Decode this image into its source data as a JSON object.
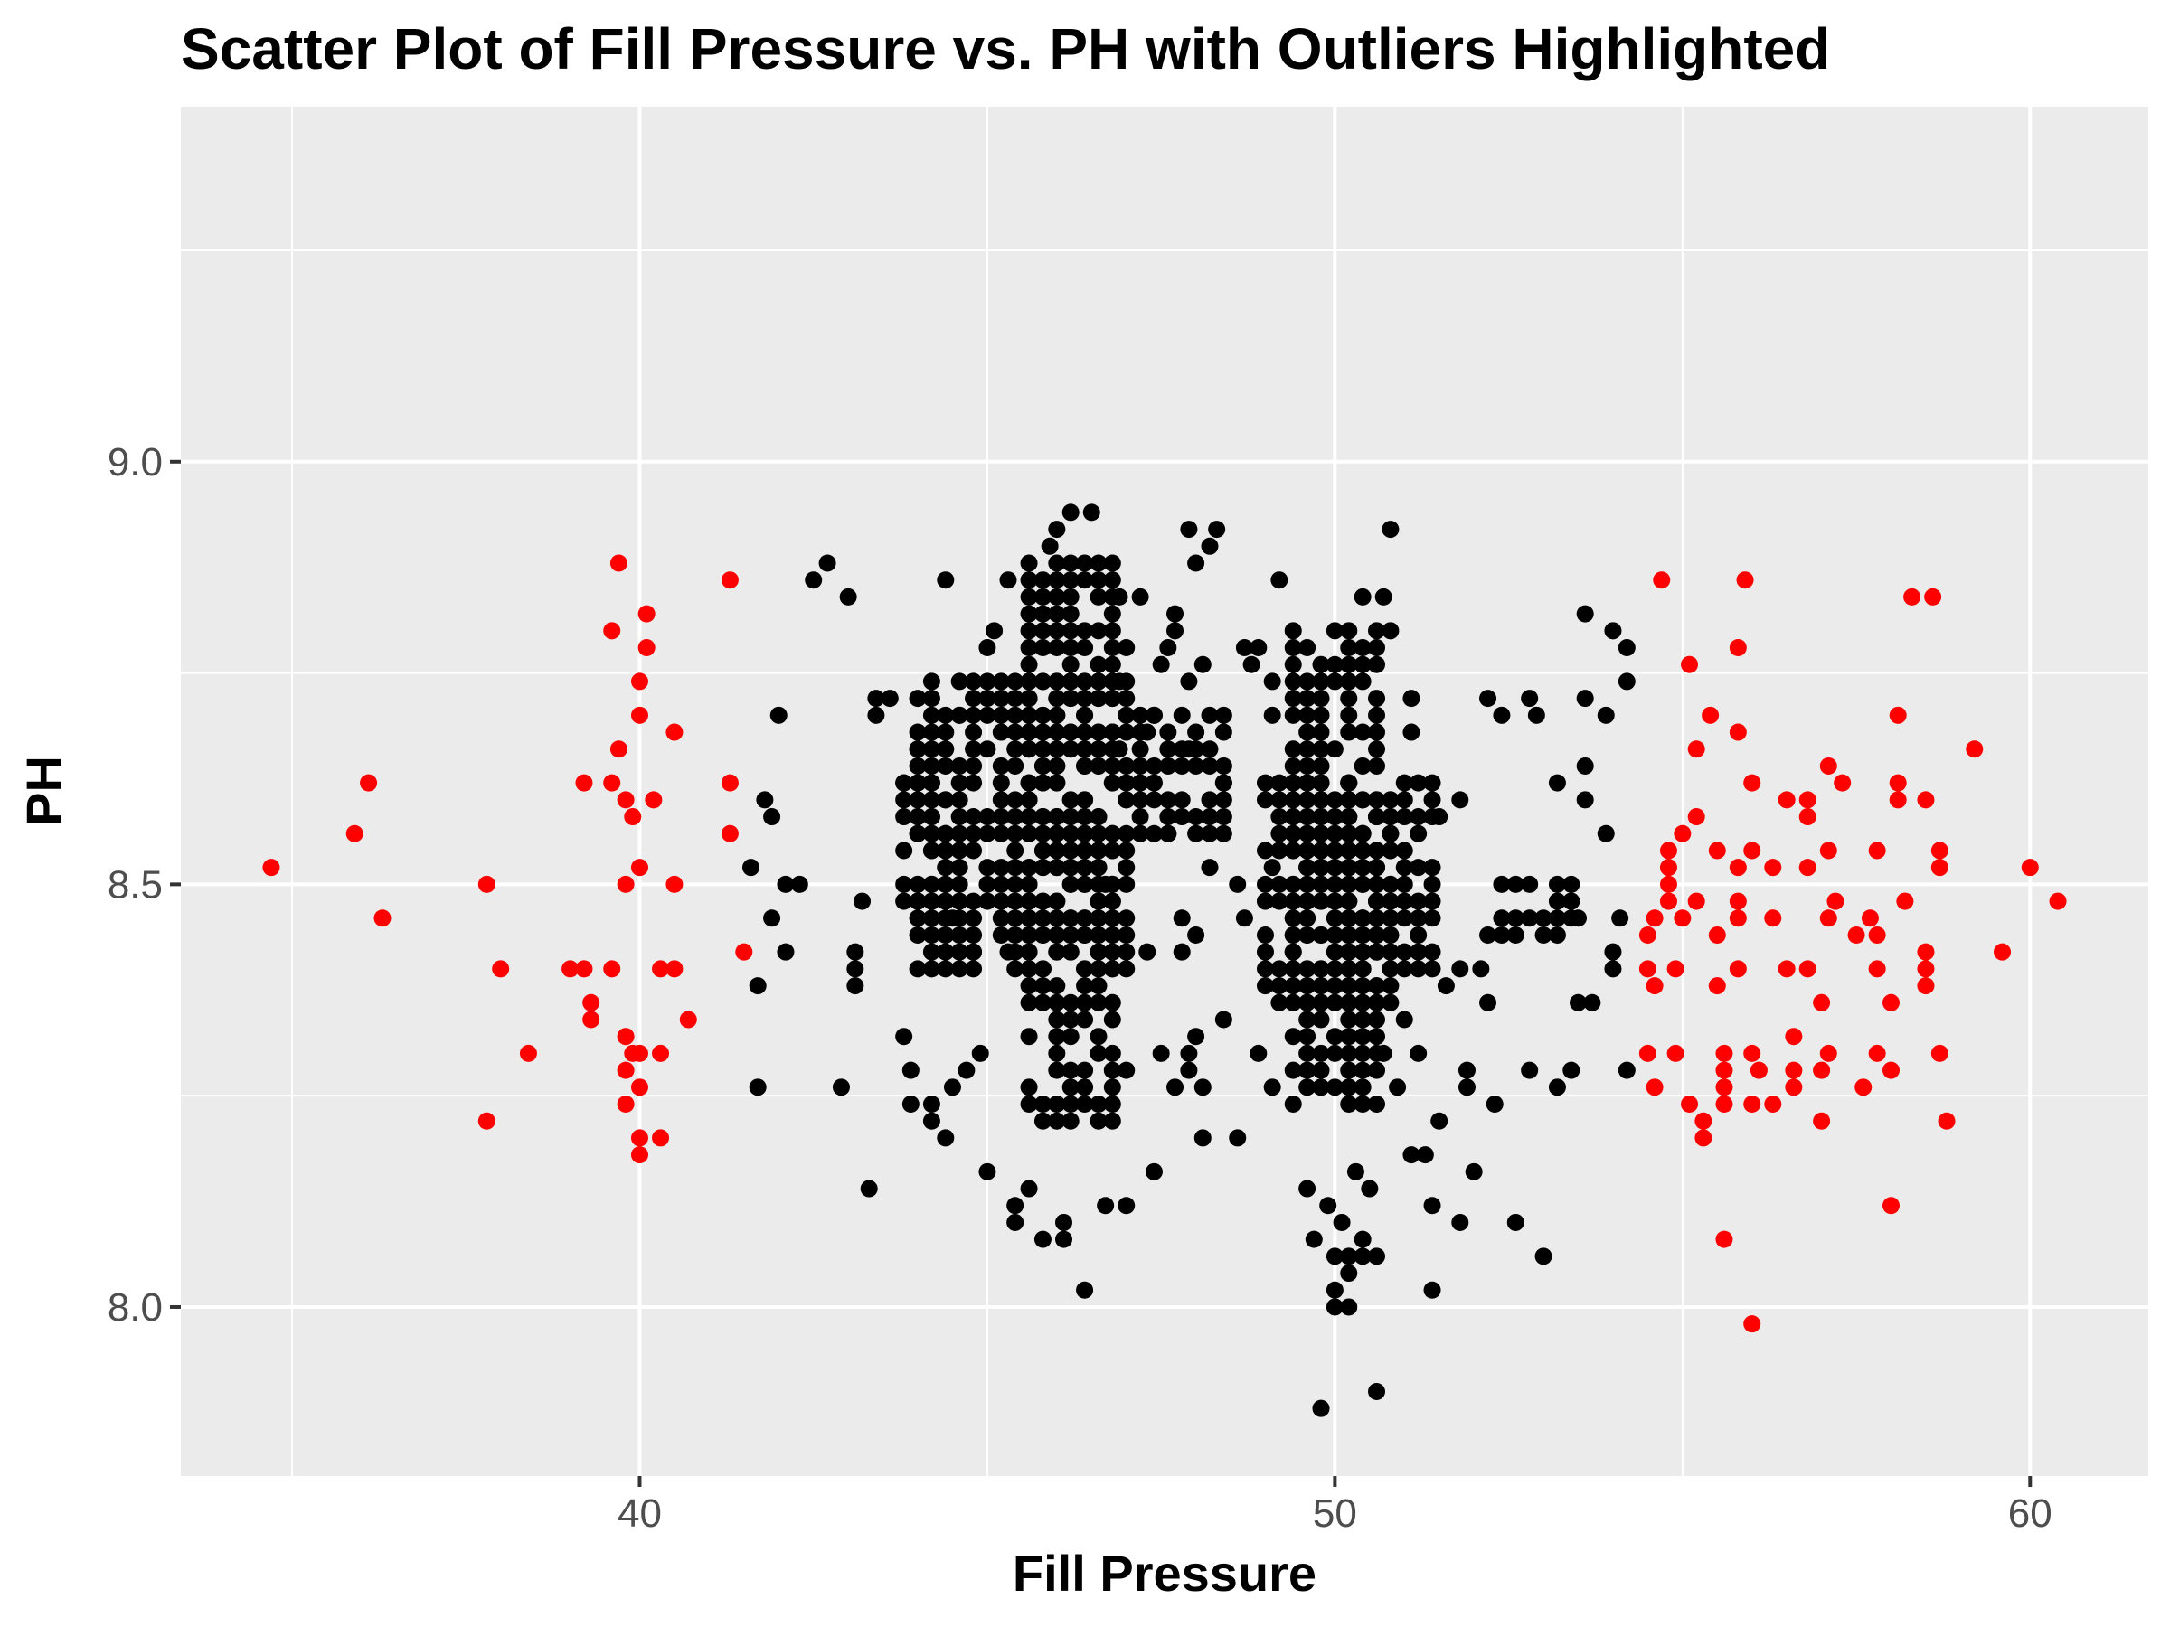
{
  "chart_data": {
    "type": "scatter",
    "title": "Scatter Plot of Fill Pressure vs. PH with Outliers Highlighted",
    "xlabel": "Fill Pressure",
    "ylabel": "PH",
    "xlim": [
      33.4,
      61.7
    ],
    "ylim": [
      7.8,
      9.42
    ],
    "x_ticks": [
      40,
      50,
      60
    ],
    "x_tick_labels": [
      "40",
      "50",
      "60"
    ],
    "y_ticks": [
      8.0,
      8.5,
      9.0
    ],
    "y_tick_labels": [
      "8.0",
      "8.5",
      "9.0"
    ],
    "grid": true,
    "legend": "none",
    "colors": {
      "panel_background": "#ebebeb",
      "grid": "#ffffff",
      "normal": "#000000",
      "outlier": "#ff0000"
    },
    "series": [
      {
        "color": "#000000",
        "points": [
          [
            42.7,
            8.88
          ],
          [
            42.5,
            8.86
          ],
          [
            43.0,
            8.84
          ],
          [
            44.4,
            8.86
          ],
          [
            43.4,
            8.72
          ],
          [
            43.6,
            8.72
          ],
          [
            43.4,
            8.7
          ],
          [
            42.0,
            8.7
          ],
          [
            41.8,
            8.6
          ],
          [
            41.9,
            8.58
          ],
          [
            42.1,
            8.5
          ],
          [
            42.3,
            8.5
          ],
          [
            41.6,
            8.52
          ],
          [
            41.9,
            8.46
          ],
          [
            42.1,
            8.42
          ],
          [
            41.7,
            8.38
          ],
          [
            41.7,
            8.26
          ],
          [
            42.9,
            8.26
          ],
          [
            43.2,
            8.48
          ],
          [
            43.1,
            8.42
          ],
          [
            43.1,
            8.4
          ],
          [
            43.1,
            8.38
          ],
          [
            43.3,
            8.14
          ],
          [
            43.8,
            8.32
          ],
          [
            43.9,
            8.28
          ],
          [
            43.9,
            8.24
          ],
          [
            44.2,
            8.24
          ],
          [
            44.2,
            8.22
          ],
          [
            44.4,
            8.2
          ],
          [
            44.5,
            8.26
          ],
          [
            44.7,
            8.28
          ],
          [
            44.9,
            8.3
          ],
          [
            45.0,
            8.16
          ],
          [
            45.4,
            8.12
          ],
          [
            45.4,
            8.1
          ],
          [
            45.6,
            8.14
          ],
          [
            45.8,
            8.08
          ],
          [
            46.1,
            8.1
          ],
          [
            46.1,
            8.08
          ],
          [
            46.4,
            8.02
          ],
          [
            46.7,
            8.12
          ],
          [
            47.0,
            8.12
          ],
          [
            47.4,
            8.16
          ],
          [
            48.1,
            8.2
          ],
          [
            48.6,
            8.2
          ],
          [
            48.9,
            8.3
          ],
          [
            49.1,
            8.26
          ],
          [
            48.4,
            8.34
          ],
          [
            49.2,
            8.86
          ],
          [
            48.9,
            8.78
          ],
          [
            48.7,
            8.78
          ],
          [
            48.8,
            8.76
          ],
          [
            48.3,
            8.92
          ],
          [
            47.9,
            8.92
          ],
          [
            48.2,
            8.9
          ],
          [
            48.0,
            8.88
          ],
          [
            46.2,
            8.94
          ],
          [
            46.5,
            8.94
          ],
          [
            46.0,
            8.92
          ],
          [
            45.9,
            8.9
          ],
          [
            47.2,
            8.84
          ],
          [
            47.7,
            8.82
          ],
          [
            49.1,
            8.74
          ],
          [
            49.1,
            8.7
          ],
          [
            49.4,
            8.58
          ],
          [
            49.1,
            8.52
          ],
          [
            48.6,
            8.5
          ],
          [
            48.7,
            8.46
          ],
          [
            48.4,
            8.62
          ],
          [
            47.6,
            8.56
          ],
          [
            48.2,
            8.52
          ],
          [
            47.8,
            8.46
          ],
          [
            47.3,
            8.42
          ],
          [
            47.0,
            8.28
          ],
          [
            47.0,
            8.6
          ],
          [
            46.7,
            8.5
          ],
          [
            45.3,
            8.42
          ],
          [
            44.8,
            8.42
          ],
          [
            44.5,
            8.46
          ],
          [
            43.8,
            8.62
          ],
          [
            44.0,
            8.66
          ],
          [
            44.6,
            8.7
          ],
          [
            45.0,
            8.78
          ],
          [
            45.1,
            8.8
          ],
          [
            45.3,
            8.86
          ],
          [
            50.8,
            8.92
          ],
          [
            50.4,
            8.84
          ],
          [
            50.7,
            8.84
          ],
          [
            50.8,
            8.8
          ],
          [
            51.1,
            8.72
          ],
          [
            51.1,
            8.68
          ],
          [
            51.5,
            8.58
          ],
          [
            51.8,
            8.6
          ],
          [
            52.2,
            8.72
          ],
          [
            52.4,
            8.7
          ],
          [
            52.8,
            8.72
          ],
          [
            52.9,
            8.7
          ],
          [
            53.2,
            8.62
          ],
          [
            53.6,
            8.64
          ],
          [
            53.9,
            8.7
          ],
          [
            53.6,
            8.72
          ],
          [
            53.6,
            8.82
          ],
          [
            54.0,
            8.8
          ],
          [
            54.2,
            8.78
          ],
          [
            54.2,
            8.74
          ],
          [
            53.9,
            8.56
          ],
          [
            53.6,
            8.6
          ],
          [
            53.4,
            8.48
          ],
          [
            53.5,
            8.46
          ],
          [
            53.5,
            8.36
          ],
          [
            53.7,
            8.36
          ],
          [
            54.0,
            8.4
          ],
          [
            54.2,
            8.28
          ],
          [
            54.1,
            8.46
          ],
          [
            54.0,
            8.42
          ],
          [
            53.2,
            8.26
          ],
          [
            53.4,
            8.28
          ],
          [
            52.8,
            8.28
          ],
          [
            53.0,
            8.06
          ],
          [
            52.6,
            8.1
          ],
          [
            52.3,
            8.24
          ],
          [
            52.2,
            8.36
          ],
          [
            51.9,
            8.26
          ],
          [
            51.9,
            8.28
          ],
          [
            51.8,
            8.4
          ],
          [
            52.1,
            8.4
          ],
          [
            51.6,
            8.38
          ],
          [
            51.0,
            8.34
          ],
          [
            51.2,
            8.3
          ],
          [
            51.5,
            8.22
          ],
          [
            51.3,
            8.18
          ],
          [
            51.1,
            8.18
          ],
          [
            51.4,
            8.12
          ],
          [
            51.8,
            8.1
          ],
          [
            52.0,
            8.16
          ],
          [
            51.4,
            8.02
          ],
          [
            50.9,
            8.26
          ],
          [
            50.7,
            8.3
          ],
          [
            50.6,
            7.9
          ],
          [
            49.8,
            7.88
          ],
          [
            50.0,
            8.0
          ],
          [
            50.2,
            8.0
          ],
          [
            50.0,
            8.02
          ],
          [
            50.2,
            8.04
          ],
          [
            50.0,
            8.06
          ],
          [
            50.2,
            8.06
          ],
          [
            50.4,
            8.06
          ],
          [
            50.6,
            8.06
          ],
          [
            50.4,
            8.08
          ],
          [
            50.1,
            8.1
          ],
          [
            50.5,
            8.14
          ],
          [
            50.3,
            8.16
          ],
          [
            49.7,
            8.08
          ],
          [
            49.6,
            8.14
          ],
          [
            49.9,
            8.12
          ],
          [
            47.5,
            8.3
          ],
          [
            47.7,
            8.26
          ],
          [
            47.9,
            8.3
          ],
          [
            48.1,
            8.26
          ],
          [
            48.0,
            8.32
          ],
          [
            47.9,
            8.28
          ],
          [
            47.8,
            8.42
          ],
          [
            48.0,
            8.44
          ],
          [
            47.9,
            8.66
          ],
          [
            47.9,
            8.74
          ],
          [
            48.1,
            8.76
          ],
          [
            47.7,
            8.8
          ],
          [
            47.6,
            8.78
          ],
          [
            47.3,
            8.68
          ],
          [
            47.4,
            8.7
          ],
          [
            47.5,
            8.76
          ],
          [
            46.9,
            8.66
          ],
          [
            46.9,
            8.74
          ],
          [
            47.0,
            8.78
          ],
          [
            46.9,
            8.84
          ]
        ]
      },
      {
        "color": "#ff0000",
        "points": [
          [
            34.7,
            8.52
          ],
          [
            35.9,
            8.56
          ],
          [
            36.1,
            8.62
          ],
          [
            36.3,
            8.46
          ],
          [
            37.8,
            8.5
          ],
          [
            38.0,
            8.4
          ],
          [
            38.4,
            8.3
          ],
          [
            37.8,
            8.22
          ],
          [
            39.0,
            8.4
          ],
          [
            39.2,
            8.4
          ],
          [
            39.2,
            8.62
          ],
          [
            39.3,
            8.36
          ],
          [
            39.3,
            8.34
          ],
          [
            39.7,
            8.88
          ],
          [
            39.7,
            8.66
          ],
          [
            39.6,
            8.8
          ],
          [
            39.6,
            8.62
          ],
          [
            39.6,
            8.4
          ],
          [
            39.8,
            8.6
          ],
          [
            39.9,
            8.58
          ],
          [
            40.0,
            8.52
          ],
          [
            40.0,
            8.7
          ],
          [
            40.0,
            8.74
          ],
          [
            40.1,
            8.78
          ],
          [
            40.1,
            8.82
          ],
          [
            40.2,
            8.6
          ],
          [
            40.3,
            8.4
          ],
          [
            40.5,
            8.4
          ],
          [
            40.5,
            8.5
          ],
          [
            40.5,
            8.68
          ],
          [
            40.7,
            8.34
          ],
          [
            39.8,
            8.5
          ],
          [
            39.8,
            8.32
          ],
          [
            39.8,
            8.28
          ],
          [
            39.8,
            8.24
          ],
          [
            40.0,
            8.3
          ],
          [
            40.0,
            8.26
          ],
          [
            40.0,
            8.2
          ],
          [
            40.0,
            8.18
          ],
          [
            40.3,
            8.3
          ],
          [
            40.3,
            8.2
          ],
          [
            39.9,
            8.3
          ],
          [
            41.3,
            8.86
          ],
          [
            41.3,
            8.62
          ],
          [
            41.3,
            8.56
          ],
          [
            41.5,
            8.42
          ],
          [
            54.7,
            8.86
          ],
          [
            55.9,
            8.86
          ],
          [
            58.3,
            8.84
          ],
          [
            58.6,
            8.84
          ],
          [
            55.8,
            8.78
          ],
          [
            55.1,
            8.76
          ],
          [
            55.4,
            8.7
          ],
          [
            55.8,
            8.68
          ],
          [
            58.1,
            8.7
          ],
          [
            59.2,
            8.66
          ],
          [
            55.2,
            8.66
          ],
          [
            56.0,
            8.62
          ],
          [
            56.5,
            8.6
          ],
          [
            56.8,
            8.6
          ],
          [
            56.8,
            8.58
          ],
          [
            57.1,
            8.64
          ],
          [
            57.3,
            8.62
          ],
          [
            58.1,
            8.62
          ],
          [
            58.1,
            8.6
          ],
          [
            58.5,
            8.6
          ],
          [
            55.2,
            8.58
          ],
          [
            55.0,
            8.56
          ],
          [
            54.8,
            8.54
          ],
          [
            55.5,
            8.54
          ],
          [
            56.0,
            8.54
          ],
          [
            57.1,
            8.54
          ],
          [
            57.8,
            8.54
          ],
          [
            58.7,
            8.54
          ],
          [
            58.7,
            8.52
          ],
          [
            60.0,
            8.52
          ],
          [
            54.8,
            8.52
          ],
          [
            54.8,
            8.5
          ],
          [
            55.8,
            8.52
          ],
          [
            56.3,
            8.52
          ],
          [
            56.8,
            8.52
          ],
          [
            54.8,
            8.48
          ],
          [
            55.2,
            8.48
          ],
          [
            55.8,
            8.48
          ],
          [
            57.2,
            8.48
          ],
          [
            58.2,
            8.48
          ],
          [
            60.4,
            8.48
          ],
          [
            54.6,
            8.46
          ],
          [
            55.0,
            8.46
          ],
          [
            55.8,
            8.46
          ],
          [
            56.3,
            8.46
          ],
          [
            57.1,
            8.46
          ],
          [
            57.7,
            8.46
          ],
          [
            58.5,
            8.42
          ],
          [
            59.6,
            8.42
          ],
          [
            54.5,
            8.44
          ],
          [
            55.5,
            8.44
          ],
          [
            57.5,
            8.44
          ],
          [
            57.8,
            8.44
          ],
          [
            54.5,
            8.4
          ],
          [
            54.9,
            8.4
          ],
          [
            55.8,
            8.4
          ],
          [
            56.5,
            8.4
          ],
          [
            56.8,
            8.4
          ],
          [
            57.8,
            8.4
          ],
          [
            58.5,
            8.4
          ],
          [
            58.5,
            8.38
          ],
          [
            54.6,
            8.38
          ],
          [
            55.5,
            8.38
          ],
          [
            57.0,
            8.36
          ],
          [
            58.0,
            8.36
          ],
          [
            54.5,
            8.3
          ],
          [
            54.9,
            8.3
          ],
          [
            55.6,
            8.3
          ],
          [
            56.0,
            8.3
          ],
          [
            56.6,
            8.32
          ],
          [
            57.1,
            8.3
          ],
          [
            57.8,
            8.3
          ],
          [
            58.7,
            8.3
          ],
          [
            55.6,
            8.28
          ],
          [
            56.1,
            8.28
          ],
          [
            56.6,
            8.28
          ],
          [
            57.0,
            8.28
          ],
          [
            58.0,
            8.28
          ],
          [
            54.6,
            8.26
          ],
          [
            55.6,
            8.26
          ],
          [
            56.6,
            8.26
          ],
          [
            57.6,
            8.26
          ],
          [
            55.1,
            8.24
          ],
          [
            55.6,
            8.24
          ],
          [
            56.0,
            8.24
          ],
          [
            56.3,
            8.24
          ],
          [
            55.3,
            8.22
          ],
          [
            57.0,
            8.22
          ],
          [
            58.8,
            8.22
          ],
          [
            55.3,
            8.2
          ],
          [
            58.0,
            8.12
          ],
          [
            55.6,
            8.08
          ],
          [
            56.0,
            7.98
          ]
        ]
      }
    ]
  }
}
